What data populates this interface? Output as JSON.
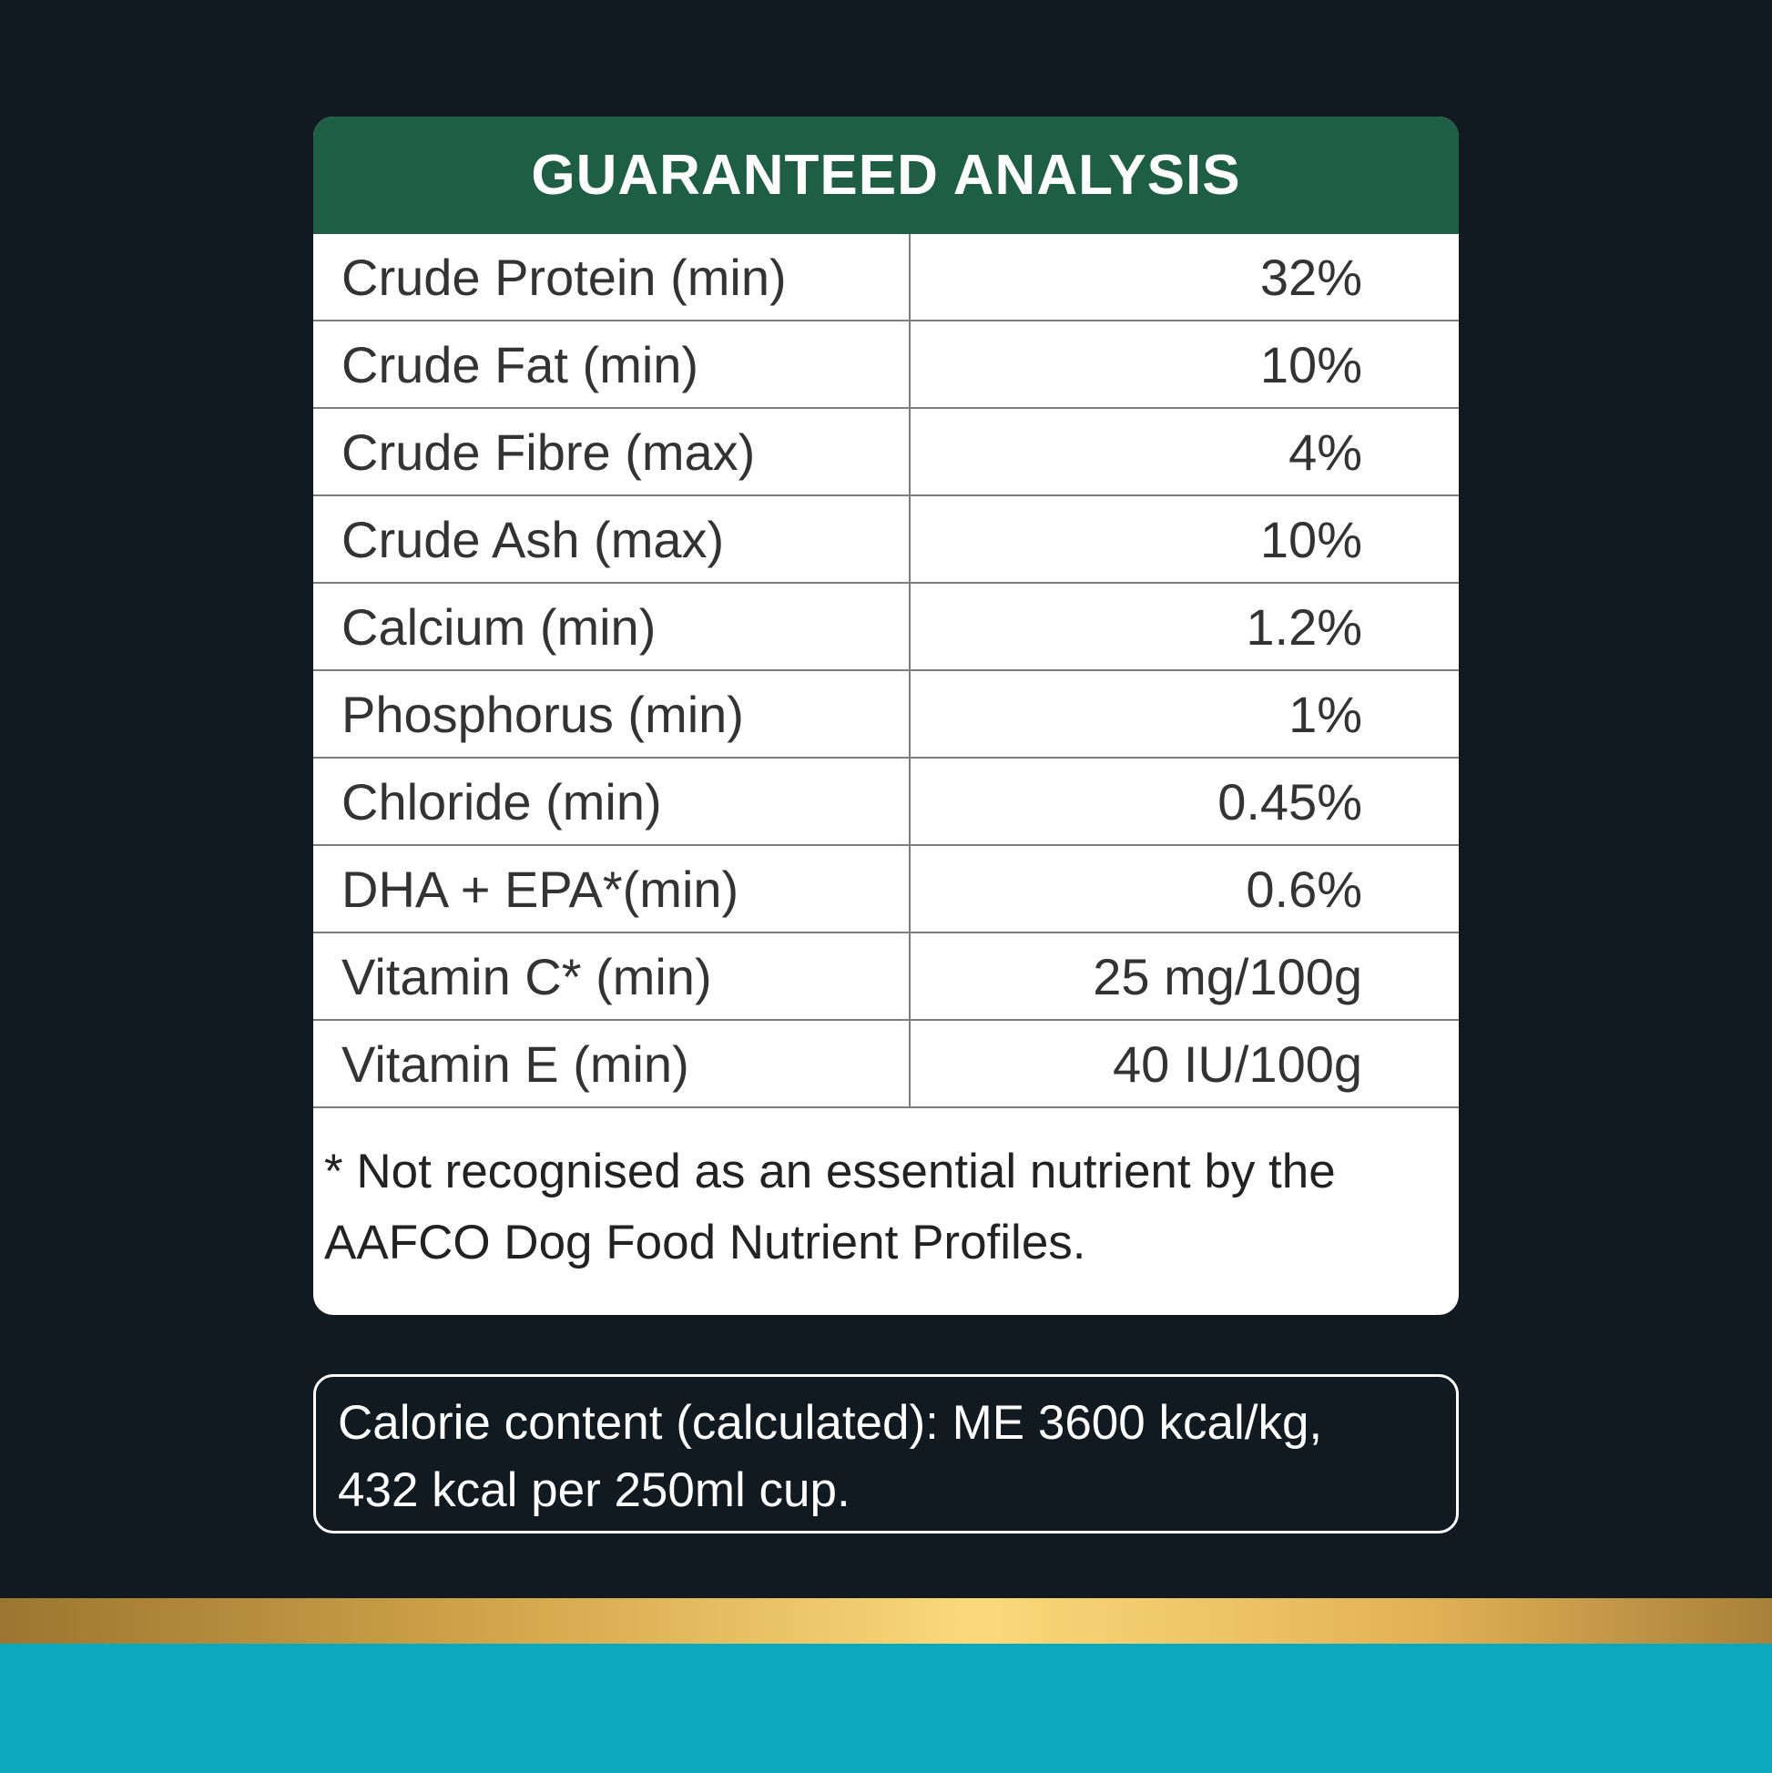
{
  "header": {
    "title": "GUARANTEED ANALYSIS"
  },
  "table": {
    "rows": [
      [
        "Crude Protein (min)",
        "32%"
      ],
      [
        "Crude Fat (min)",
        "10%"
      ],
      [
        "Crude Fibre (max)",
        "4%"
      ],
      [
        "Crude Ash (max)",
        "10%"
      ],
      [
        "Calcium (min)",
        "1.2%"
      ],
      [
        "Phosphorus (min)",
        "1%"
      ],
      [
        "Chloride (min)",
        "0.45%"
      ],
      [
        "DHA + EPA*(min)",
        "0.6%"
      ],
      [
        "Vitamin C* (min)",
        "25 mg/100g"
      ],
      [
        "Vitamin E (min)",
        "40 IU/100g"
      ]
    ]
  },
  "footnote": {
    "lines": [
      "* Not recognised as an essential nutrient by the",
      "AAFCO Dog Food Nutrient Profiles."
    ]
  },
  "calorie": {
    "lines": [
      "Calorie content (calculated): ME 3600 kcal/kg,",
      "432 kcal per 250ml cup."
    ]
  }
}
